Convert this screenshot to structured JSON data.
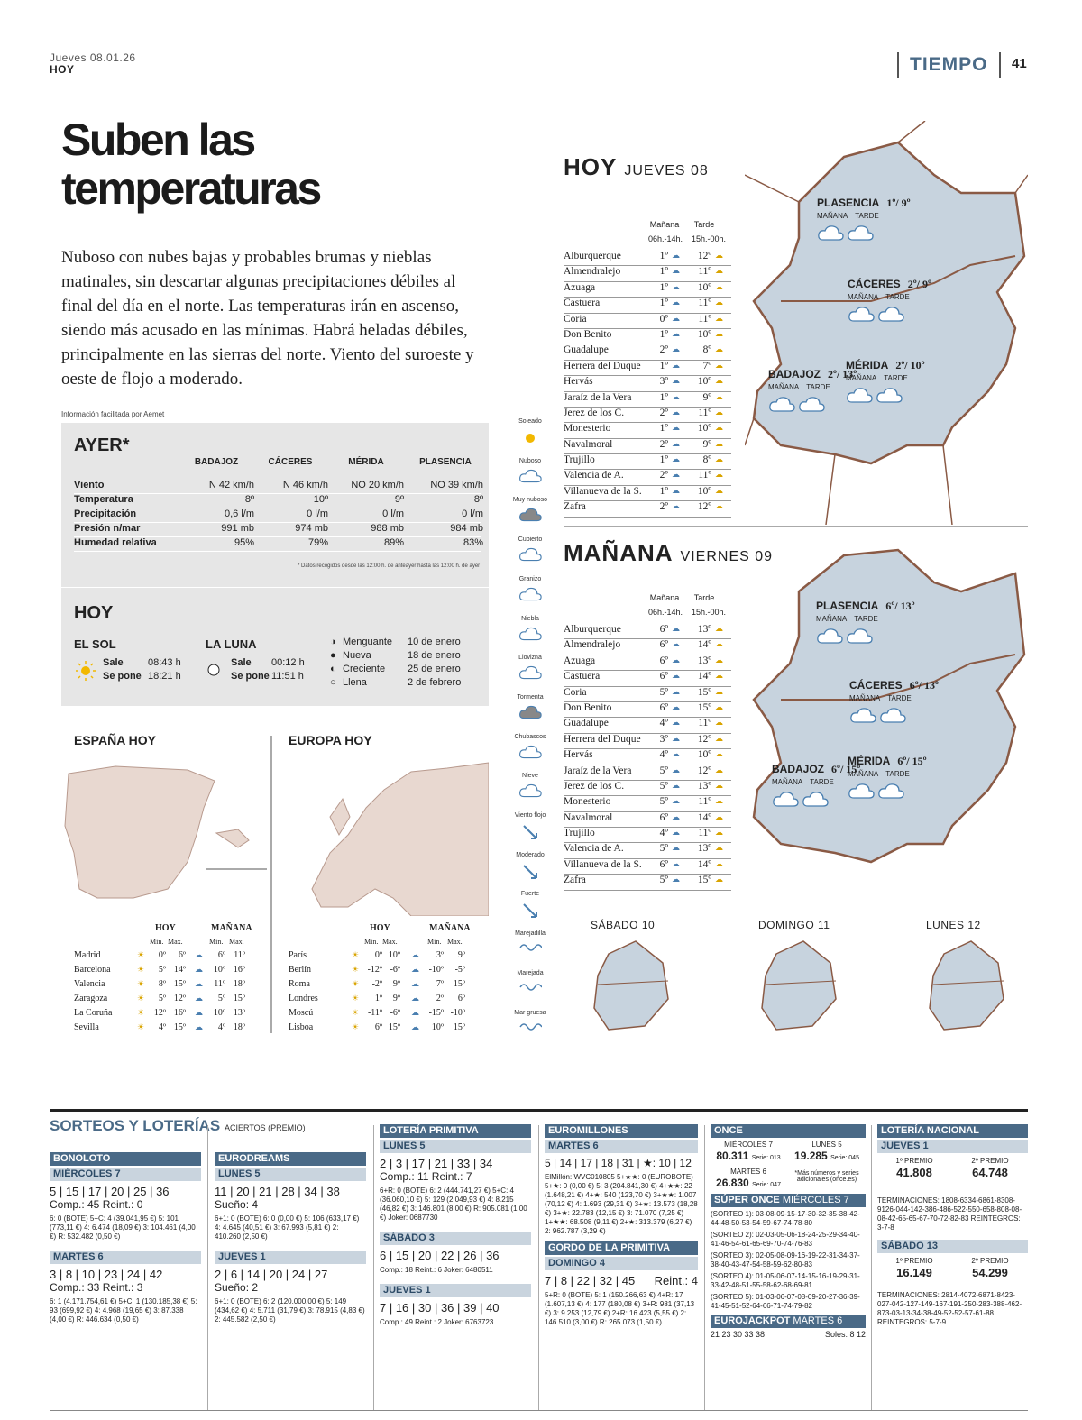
{
  "header": {
    "date": "Jueves 08.01.26",
    "paper": "HOY",
    "section": "TIEMPO",
    "page": "41"
  },
  "headline": "Suben las temperaturas",
  "lead": "Nuboso con nubes bajas y probables brumas y nieblas matinales, sin descartar algunas precipitaciones débiles al final del día en el norte. Las temperaturas irán en ascenso, siendo más acusado en las mínimas. Habrá heladas débiles, principalmente en las sierras del norte. Viento del suroeste y oeste de flojo a moderado.",
  "source": "Información facilitada por Aemet",
  "ayer": {
    "title": "AYER*",
    "columns": [
      "BADAJOZ",
      "CÁCERES",
      "MÉRIDA",
      "PLASENCIA"
    ],
    "rows": [
      {
        "label": "Viento",
        "values": [
          "N 42 km/h",
          "N 46 km/h",
          "NO 20 km/h",
          "NO 39 km/h"
        ]
      },
      {
        "label": "Temperatura",
        "values": [
          "8º",
          "10º",
          "9º",
          "8º"
        ]
      },
      {
        "label": "Precipitación",
        "values": [
          "0,6 l/m",
          "0 l/m",
          "0 l/m",
          "0 l/m"
        ]
      },
      {
        "label": "Presión n/mar",
        "values": [
          "991 mb",
          "974 mb",
          "988 mb",
          "984 mb"
        ]
      },
      {
        "label": "Humedad relativa",
        "values": [
          "95%",
          "79%",
          "89%",
          "83%"
        ]
      }
    ],
    "note": "Datos recogidos desde las 12:00 h. de anteayer hasta las 12:00 h. de ayer"
  },
  "hoy_box": {
    "title": "HOY",
    "sol": "EL SOL",
    "luna": "LA LUNA",
    "sale": "Sale",
    "se_pone": "Se pone",
    "sol_sale": "08:43 h",
    "sol_pone": "18:21 h",
    "luna_sale": "00:12 h",
    "luna_pone": "11:51 h",
    "fases": [
      {
        "name": "Menguante",
        "date": "10 de enero"
      },
      {
        "name": "Nueva",
        "date": "18 de enero"
      },
      {
        "name": "Creciente",
        "date": "25 de enero"
      },
      {
        "name": "Llena",
        "date": "2 de febrero"
      }
    ]
  },
  "espana": {
    "title": "ESPAÑA HOY",
    "hoy": "HOY",
    "manana": "MAÑANA",
    "min": "Min.",
    "max": "Max.",
    "rows": [
      {
        "c": "Madrid",
        "a": "0º",
        "b": "6º",
        "c2": "6º",
        "d": "11º"
      },
      {
        "c": "Barcelona",
        "a": "5º",
        "b": "14º",
        "c2": "10º",
        "d": "16º"
      },
      {
        "c": "Valencia",
        "a": "8º",
        "b": "15º",
        "c2": "11º",
        "d": "18º"
      },
      {
        "c": "Zaragoza",
        "a": "5º",
        "b": "12º",
        "c2": "5º",
        "d": "15º"
      },
      {
        "c": "La Coruña",
        "a": "12º",
        "b": "16º",
        "c2": "10º",
        "d": "13º"
      },
      {
        "c": "Sevilla",
        "a": "4º",
        "b": "15º",
        "c2": "4º",
        "d": "18º"
      }
    ]
  },
  "europa": {
    "title": "EUROPA HOY",
    "rows": [
      {
        "c": "París",
        "a": "0º",
        "b": "10º",
        "c2": "3º",
        "d": "9º"
      },
      {
        "c": "Berlín",
        "a": "-12º",
        "b": "-6º",
        "c2": "-10º",
        "d": "-5º"
      },
      {
        "c": "Roma",
        "a": "-2º",
        "b": "9º",
        "c2": "7º",
        "d": "15º"
      },
      {
        "c": "Londres",
        "a": "1º",
        "b": "9º",
        "c2": "2º",
        "d": "6º"
      },
      {
        "c": "Moscú",
        "a": "-11º",
        "b": "-6º",
        "c2": "-15º",
        "d": "-10º"
      },
      {
        "c": "Lisboa",
        "a": "6º",
        "b": "15º",
        "c2": "10º",
        "d": "15º"
      }
    ]
  },
  "legend": [
    "Soleado",
    "Nuboso",
    "Muy nuboso",
    "Cubierto",
    "Granizo",
    "Niebla",
    "Llovizna",
    "Tormenta",
    "Chubascos",
    "Nieve",
    "Viento flojo",
    "Moderado",
    "Fuerte",
    "Marejadilla",
    "Marejada",
    "Mar gruesa"
  ],
  "hoy_ext": {
    "title": "HOY",
    "sub": "JUEVES 08",
    "col1": "Mañana",
    "col2": "Tarde",
    "h1": "06h.-14h.",
    "h2": "15h.-00h.",
    "rows": [
      [
        "Alburquerque",
        "1º",
        "12º"
      ],
      [
        "Almendralejo",
        "1º",
        "11º"
      ],
      [
        "Azuaga",
        "1º",
        "10º"
      ],
      [
        "Castuera",
        "1º",
        "11º"
      ],
      [
        "Coria",
        "0º",
        "11º"
      ],
      [
        "Don Benito",
        "1º",
        "10º"
      ],
      [
        "Guadalupe",
        "2º",
        "8º"
      ],
      [
        "Herrera del Duque",
        "1º",
        "7º"
      ],
      [
        "Hervás",
        "3º",
        "10º"
      ],
      [
        "Jaraíz de la Vera",
        "1º",
        "9º"
      ],
      [
        "Jerez de los C.",
        "2º",
        "11º"
      ],
      [
        "Monesterio",
        "1º",
        "10º"
      ],
      [
        "Navalmoral",
        "2º",
        "9º"
      ],
      [
        "Trujillo",
        "1º",
        "8º"
      ],
      [
        "Valencia de A.",
        "2º",
        "11º"
      ],
      [
        "Villanueva de la S.",
        "1º",
        "10º"
      ],
      [
        "Zafra",
        "2º",
        "12º"
      ]
    ],
    "cities": [
      {
        "n": "PLASENCIA",
        "t": "1º/ 9º"
      },
      {
        "n": "CÁCERES",
        "t": "2º/ 9º"
      },
      {
        "n": "BADAJOZ",
        "t": "2º/ 13º"
      },
      {
        "n": "MÉRIDA",
        "t": "2º/ 10º"
      }
    ]
  },
  "manana_ext": {
    "title": "MAÑANA",
    "sub": "VIERNES 09",
    "rows": [
      [
        "Alburquerque",
        "6º",
        "13º"
      ],
      [
        "Almendralejo",
        "6º",
        "14º"
      ],
      [
        "Azuaga",
        "6º",
        "13º"
      ],
      [
        "Castuera",
        "6º",
        "14º"
      ],
      [
        "Coria",
        "5º",
        "15º"
      ],
      [
        "Don Benito",
        "6º",
        "15º"
      ],
      [
        "Guadalupe",
        "4º",
        "11º"
      ],
      [
        "Herrera del Duque",
        "3º",
        "12º"
      ],
      [
        "Hervás",
        "4º",
        "10º"
      ],
      [
        "Jaraíz de la Vera",
        "5º",
        "12º"
      ],
      [
        "Jerez de los C.",
        "5º",
        "13º"
      ],
      [
        "Monesterio",
        "5º",
        "11º"
      ],
      [
        "Navalmoral",
        "6º",
        "14º"
      ],
      [
        "Trujillo",
        "4º",
        "11º"
      ],
      [
        "Valencia de A.",
        "5º",
        "13º"
      ],
      [
        "Villanueva de la S.",
        "6º",
        "14º"
      ],
      [
        "Zafra",
        "5º",
        "15º"
      ]
    ],
    "cities": [
      {
        "n": "PLASENCIA",
        "t": "6º/ 13º"
      },
      {
        "n": "CÁCERES",
        "t": "6º/ 13º"
      },
      {
        "n": "BADAJOZ",
        "t": "6º/ 15º"
      },
      {
        "n": "MÉRIDA",
        "t": "6º/ 15º"
      }
    ]
  },
  "labels": {
    "manana_s": "MAÑANA",
    "tarde": "TARDE"
  },
  "days": [
    "SÁBADO 10",
    "DOMINGO 11",
    "LUNES 12"
  ],
  "loterias": {
    "title": "SORTEOS Y LOTERÍAS",
    "sub": "ACIERTOS (PREMIO)",
    "bonoloto": {
      "t": "BONOLOTO",
      "d1": "MIÉRCOLES 7",
      "n1": "5 | 15 | 17 | 20 | 25 | 36",
      "c1": "Comp.: 45 Reint.: 0",
      "p1": "6: 0 (BOTE) 5+C: 4 (39.041,95 €) 5: 101 (773,11 €) 4: 6.474 (18,09 €) 3: 104.461 (4,00 €) R: 532.482 (0,50 €)",
      "d2": "MARTES 6",
      "n2": "3 | 8 | 10 | 23 | 24 | 42",
      "c2": "Comp.: 33 Reint.: 3",
      "p2": "6: 1 (4.171.754,61 €) 5+C: 1 (130.185,38 €) 5: 93 (699,92 €) 4: 4.968 (19,65 €) 3: 87.338 (4,00 €) R: 446.634 (0,50 €)"
    },
    "eurodreams": {
      "t": "EURODREAMS",
      "d1": "LUNES 5",
      "n1": "11 | 20 | 21 | 28 | 34 | 38",
      "c1": "Sueño: 4",
      "p1": "6+1: 0 (BOTE) 6: 0 (0,00 €) 5: 106 (633,17 €) 4: 4.645 (40,51 €) 3: 67.993 (5,81 €) 2: 410.260 (2,50 €)",
      "d2": "JUEVES 1",
      "n2": "2 | 6 | 14 | 20 | 24 | 27",
      "c2": "Sueño: 2",
      "p2": "6+1: 0 (BOTE) 6: 2 (120.000,00 €) 5: 149 (434,62 €) 4: 5.711 (31,79 €) 3: 78.915 (4,83 €) 2: 445.582 (2,50 €)"
    },
    "primitiva": {
      "t": "LOTERÍA PRIMITIVA",
      "d1": "LUNES 5",
      "n1": "2 | 3 | 17 | 21 | 33 | 34",
      "c1": "Comp.: 11 Reint.: 7",
      "p1": "6+R: 0 (BOTE) 6: 2 (444.741,27 €) 5+C: 4 (36.060,10 €) 5: 129 (2.049,93 €) 4: 8.215 (46,82 €) 3: 146.801 (8,00 €) R: 905.081 (1,00 €) Joker: 0687730",
      "d2": "SÁBADO 3",
      "n2": "6 | 15 | 20 | 22 | 26 | 36",
      "c2": "Comp.: 18 Reint.: 6 Joker: 6480511",
      "d3": "JUEVES 1",
      "n3": "7 | 16 | 30 | 36 | 39 | 40",
      "c3": "Comp.: 49 Reint.: 2 Joker: 6763723"
    },
    "euromillones": {
      "t": "EUROMILLONES",
      "d1": "MARTES 6",
      "n1": "5 | 14 | 17 | 18 | 31 | ★: 10 | 12",
      "p1": "ElMillón: WVC010805 5+★★: 0 (EUROBOTE) 5+★: 0 (0,00 €) 5: 3 (204.841,30 €) 4+★★: 22 (1.648,21 €) 4+★: 540 (123,70 €) 3+★★: 1.007 (70,12 €) 4: 1.693 (29,31 €) 3+★: 13.573 (18,28 €) 3+★: 22.783 (12,15 €) 3: 71.070 (7,25 €) 1+★★: 68.508 (9,11 €) 2+★: 313.379 (6,27 €) 2: 962.787 (3,29 €)",
      "gt": "GORDO DE LA PRIMITIVA",
      "d2": "DOMINGO 4",
      "n2": "7 | 8 | 22 | 32 | 45",
      "r2": "Reint.: 4",
      "p2": "5+R: 0 (BOTE) 5: 1 (150.266,63 €) 4+R: 17 (1.607,13 €) 4: 177 (180,08 €) 3+R: 981 (37,13 €) 3: 9.253 (12,79 €) 2+R: 16.423 (5,55 €) 2: 146.510 (3,00 €) R: 265.073 (1,50 €)"
    },
    "once": {
      "t": "ONCE",
      "d1": "MIÉRCOLES 7",
      "n1": "80.311",
      "s1": "Serie: 013",
      "d2": "LUNES 5",
      "n2": "19.285",
      "s2": "Serie: 045",
      "d3": "MARTES 6",
      "n3": "26.830",
      "s3": "Serie: 047",
      "note": "*Más números y series adicionales (once.es)",
      "st": "SÚPER ONCE",
      "sd": "MIÉRCOLES 7",
      "s": [
        "(SORTEO 1): 03-08-09-15-17-30-32-35-38-42-44-48-50-53-54-59-67-74-78-80",
        "(SORTEO 2): 02-03-05-06-18-24-25-29-34-40-41-46-54-61-65-69-70-74-76-83",
        "(SORTEO 3): 02-05-08-09-16-19-22-31-34-37-38-40-43-47-54-58-59-62-80-83",
        "(SORTEO 4): 01-05-06-07-14-15-16-19-29-31-33-42-48-51-55-58-62-68-69-81",
        "(SORTEO 5): 01-03-06-07-08-09-20-27-36-39-41-45-51-52-64-66-71-74-79-82"
      ],
      "ej": "EUROJACKPOT",
      "ejd": "MARTES 6",
      "ejn": "21 23 30 33 38",
      "ejs": "Soles: 8 12"
    },
    "nacional": {
      "t": "LOTERÍA NACIONAL",
      "d1": "JUEVES 1",
      "p1l": "1º PREMIO",
      "p1": "41.808",
      "p2l": "2º PREMIO",
      "p2": "64.748",
      "term1": "TERMINACIONES: 1808-6334-6861-8308-9126-044-142-386-486-522-550-658-808-08-08-42-65-65-67-70-72-82-83 REINTEGROS: 3-7-8",
      "d2": "SÁBADO 13",
      "p3": "16.149",
      "p4": "54.299",
      "term2": "TERMINACIONES: 2814-4072-6871-8423-027-042-127-149-167-191-250-283-388-462-873-03-13-34-38-49-52-52-57-61-88 REINTEGROS: 5-7-9"
    }
  }
}
